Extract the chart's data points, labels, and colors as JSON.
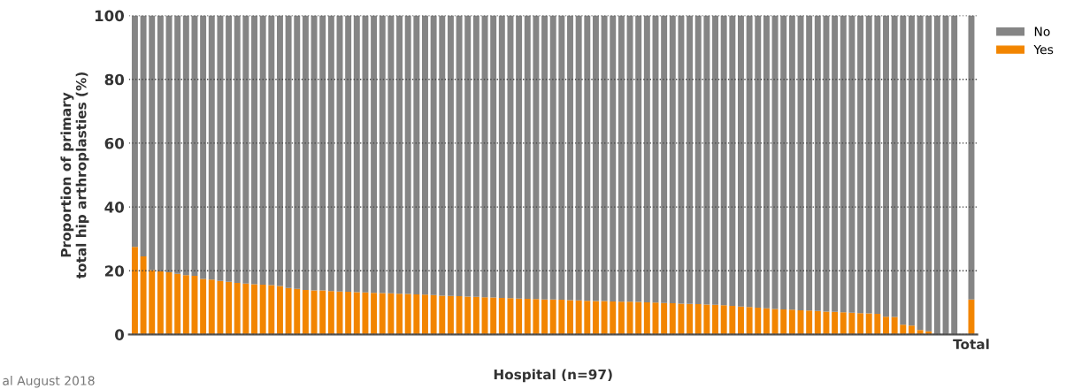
{
  "chart_data": {
    "type": "bar",
    "stacked": true,
    "xlabel": "Hospital (n=97)",
    "ylabel": "Proportion of primary\ntotal hip arthroplasties (%)",
    "categories": [
      null,
      null,
      null,
      null,
      null,
      null,
      null,
      null,
      null,
      null,
      null,
      null,
      null,
      null,
      null,
      null,
      null,
      null,
      null,
      null,
      null,
      null,
      null,
      null,
      null,
      null,
      null,
      null,
      null,
      null,
      null,
      null,
      null,
      null,
      null,
      null,
      null,
      null,
      null,
      null,
      null,
      null,
      null,
      null,
      null,
      null,
      null,
      null,
      null,
      null,
      null,
      null,
      null,
      null,
      null,
      null,
      null,
      null,
      null,
      null,
      null,
      null,
      null,
      null,
      null,
      null,
      null,
      null,
      null,
      null,
      null,
      null,
      null,
      null,
      null,
      null,
      null,
      null,
      null,
      null,
      null,
      null,
      null,
      null,
      null,
      null,
      null,
      null,
      null,
      null,
      null,
      null,
      null,
      null,
      null,
      null,
      null,
      null,
      "Total"
    ],
    "series": [
      {
        "name": "Yes",
        "color": "#f28500",
        "values": [
          27.5,
          24.5,
          20.2,
          19.8,
          19.5,
          19.0,
          18.6,
          18.4,
          17.4,
          17.2,
          16.8,
          16.5,
          16.2,
          16.0,
          15.8,
          15.6,
          15.5,
          15.2,
          14.6,
          14.3,
          14.0,
          13.8,
          13.8,
          13.6,
          13.5,
          13.4,
          13.3,
          13.2,
          13.1,
          13.0,
          12.9,
          12.8,
          12.7,
          12.6,
          12.5,
          12.4,
          12.2,
          12.1,
          12.0,
          11.9,
          11.8,
          11.7,
          11.6,
          11.5,
          11.4,
          11.3,
          11.2,
          11.1,
          11.0,
          11.0,
          10.9,
          10.8,
          10.7,
          10.6,
          10.5,
          10.5,
          10.4,
          10.3,
          10.3,
          10.2,
          10.1,
          10.0,
          9.9,
          9.8,
          9.7,
          9.6,
          9.5,
          9.4,
          9.3,
          9.2,
          9.0,
          8.8,
          8.6,
          8.4,
          8.2,
          8.0,
          7.9,
          7.8,
          7.6,
          7.5,
          7.4,
          7.2,
          7.1,
          7.0,
          6.8,
          6.7,
          6.6,
          6.5,
          5.6,
          5.5,
          3.1,
          2.8,
          1.4,
          1.0,
          0,
          0,
          0,
          null,
          11.0
        ]
      },
      {
        "name": "No",
        "color": "#858585",
        "values": [
          72.5,
          75.5,
          79.8,
          80.2,
          80.5,
          81.0,
          81.4,
          81.6,
          82.6,
          82.8,
          83.2,
          83.5,
          83.8,
          84.0,
          84.2,
          84.4,
          84.5,
          84.8,
          85.4,
          85.7,
          86.0,
          86.2,
          86.2,
          86.4,
          86.5,
          86.6,
          86.7,
          86.8,
          86.9,
          87.0,
          87.1,
          87.2,
          87.3,
          87.4,
          87.5,
          87.6,
          87.8,
          87.9,
          88.0,
          88.1,
          88.2,
          88.3,
          88.4,
          88.5,
          88.6,
          88.7,
          88.8,
          88.9,
          89.0,
          89.0,
          89.1,
          89.2,
          89.3,
          89.4,
          89.5,
          89.5,
          89.6,
          89.7,
          89.7,
          89.8,
          89.9,
          90.0,
          90.1,
          90.2,
          90.3,
          90.4,
          90.5,
          90.6,
          90.7,
          90.8,
          91.0,
          91.2,
          91.4,
          91.6,
          91.8,
          92.0,
          92.1,
          92.2,
          92.4,
          92.5,
          92.6,
          92.8,
          92.9,
          93.0,
          93.2,
          93.3,
          93.4,
          93.5,
          94.4,
          94.5,
          96.9,
          97.2,
          98.6,
          99.0,
          100,
          100,
          100,
          null,
          89.0
        ]
      }
    ],
    "ylim": [
      0,
      100
    ],
    "yticks": [
      0,
      20,
      40,
      60,
      80,
      100
    ],
    "grid": "y",
    "legend": "top right",
    "annotations": [
      "al August 2018"
    ]
  }
}
